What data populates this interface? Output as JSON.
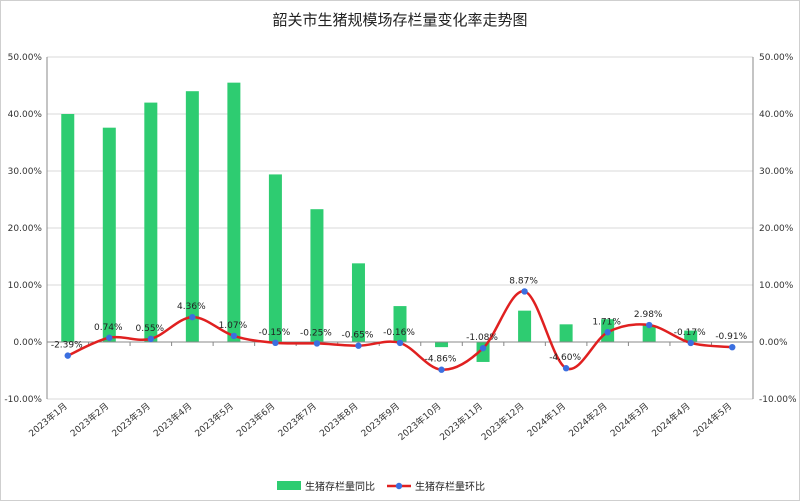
{
  "chart_data": {
    "type": "bar",
    "title": "韶关市生猪规模场存栏量变化率走势图",
    "categories": [
      "2023年1月",
      "2023年2月",
      "2023年3月",
      "2023年4月",
      "2023年5月",
      "2023年6月",
      "2023年7月",
      "2023年8月",
      "2023年9月",
      "2023年10月",
      "2023年11月",
      "2023年12月",
      "2024年1月",
      "2024年2月",
      "2024年3月",
      "2024年4月",
      "2024年5月"
    ],
    "series": [
      {
        "name": "生猪存栏量同比",
        "type": "bar",
        "axis": "left",
        "color": "#2ecc71",
        "values": [
          40.0,
          37.6,
          42.0,
          44.0,
          45.5,
          29.4,
          23.3,
          13.8,
          6.3,
          -0.9,
          -3.5,
          5.5,
          3.1,
          4.0,
          2.9,
          2.0,
          null
        ]
      },
      {
        "name": "生猪存栏量环比",
        "type": "line",
        "axis": "right",
        "color": "#e02020",
        "marker_color": "#3b6fe0",
        "values": [
          -2.39,
          0.74,
          0.55,
          4.36,
          1.07,
          -0.15,
          -0.25,
          -0.65,
          -0.16,
          -4.86,
          -1.08,
          8.87,
          -4.6,
          1.71,
          2.98,
          -0.17,
          -0.91
        ],
        "labels": [
          "-2.39%",
          "0.74%",
          "0.55%",
          "4.36%",
          "1.07%",
          "-0.15%",
          "-0.25%",
          "-0.65%",
          "-0.16%",
          "-4.86%",
          "-1.08%",
          "8.87%",
          "-4.60%",
          "1.71%",
          "2.98%",
          "-0.17%",
          "-0.91%"
        ]
      }
    ],
    "ylim": [
      -10,
      50
    ],
    "y_ticks": [
      "-10.00%",
      "0.00%",
      "10.00%",
      "20.00%",
      "30.00%",
      "40.00%",
      "50.00%"
    ],
    "y2lim": [
      -10,
      50
    ],
    "y2_ticks": [
      "-10.00%",
      "0.00%",
      "10.00%",
      "20.00%",
      "30.00%",
      "40.00%",
      "50.00%"
    ],
    "grid": "horizontal",
    "legend_position": "bottom"
  }
}
